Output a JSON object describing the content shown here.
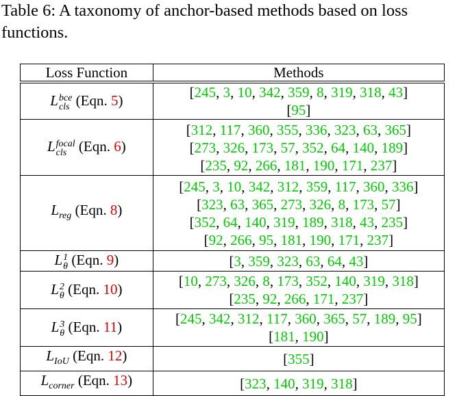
{
  "caption": "Table 6: A taxonomy of anchor-based methods based on loss functions.",
  "header": {
    "col1": "Loss Function",
    "col2": "Methods"
  },
  "rows": [
    {
      "base": "L",
      "sup": "bce",
      "sub": "cls",
      "eqn_prefix": "(Eqn. ",
      "eqn": "5",
      "eqn_suffix": ")",
      "lines": [
        [
          "245",
          "3",
          "10",
          "342",
          "359",
          "8",
          "319",
          "318",
          "43"
        ],
        [
          "95"
        ]
      ]
    },
    {
      "base": "L",
      "sup": "focal",
      "sub": "cls",
      "eqn_prefix": "(Eqn. ",
      "eqn": "6",
      "eqn_suffix": ")",
      "lines": [
        [
          "312",
          "117",
          "360",
          "355",
          "336",
          "323",
          "63",
          "365"
        ],
        [
          "273",
          "326",
          "173",
          "57",
          "352",
          "64",
          "140",
          "189"
        ],
        [
          "235",
          "92",
          "266",
          "181",
          "190",
          "171",
          "237"
        ]
      ]
    },
    {
      "base": "L",
      "sup": "",
      "sub": "reg",
      "eqn_prefix": "(Eqn. ",
      "eqn": "8",
      "eqn_suffix": ")",
      "lines": [
        [
          "245",
          "3",
          "10",
          "342",
          "312",
          "359",
          "117",
          "360",
          "336"
        ],
        [
          "323",
          "63",
          "365",
          "273",
          "326",
          "8",
          "173",
          "57"
        ],
        [
          "352",
          "64",
          "140",
          "319",
          "189",
          "318",
          "43",
          "235"
        ],
        [
          "92",
          "266",
          "95",
          "181",
          "190",
          "171",
          "237"
        ]
      ]
    },
    {
      "base": "L",
      "sup": "1",
      "sub": "θ",
      "eqn_prefix": "(Eqn. ",
      "eqn": "9",
      "eqn_suffix": ")",
      "lines": [
        [
          "3",
          "359",
          "323",
          "63",
          "64",
          "43"
        ]
      ]
    },
    {
      "base": "L",
      "sup": "2",
      "sub": "θ",
      "eqn_prefix": "(Eqn. ",
      "eqn": "10",
      "eqn_suffix": ")",
      "lines": [
        [
          "10",
          "273",
          "326",
          "8",
          "173",
          "352",
          "140",
          "319",
          "318"
        ],
        [
          "235",
          "92",
          "266",
          "171",
          "237"
        ]
      ]
    },
    {
      "base": "L",
      "sup": "3",
      "sub": "θ",
      "eqn_prefix": "(Eqn. ",
      "eqn": "11",
      "eqn_suffix": ")",
      "lines": [
        [
          "245",
          "342",
          "312",
          "117",
          "360",
          "365",
          "57",
          "189",
          "95"
        ],
        [
          "181",
          "190"
        ]
      ]
    },
    {
      "base": "L",
      "sup": "",
      "sub": "IoU",
      "eqn_prefix": "(Eqn. ",
      "eqn": "12",
      "eqn_suffix": ")",
      "lines": [
        [
          "355"
        ]
      ]
    },
    {
      "base": "L",
      "sup": "",
      "sub": "corner",
      "eqn_prefix": "(Eqn. ",
      "eqn": "13",
      "eqn_suffix": ")",
      "lines": [
        [
          "323",
          "140",
          "319",
          "318"
        ]
      ]
    }
  ]
}
